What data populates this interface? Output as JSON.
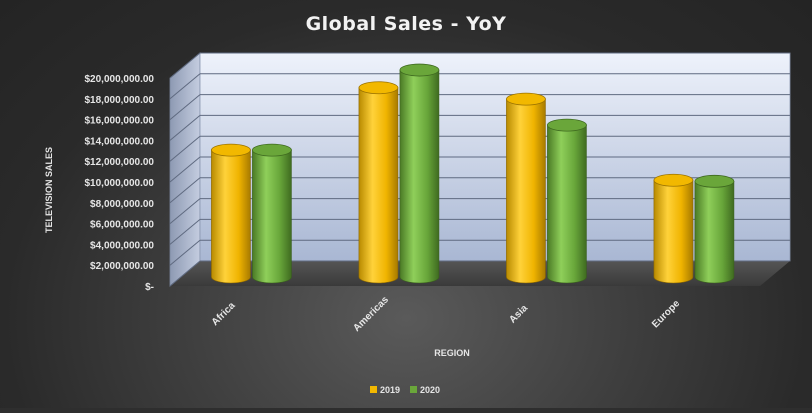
{
  "chart_data": {
    "type": "bar",
    "title": "Global Sales - YoY",
    "xlabel": "REGION",
    "ylabel": "TELEVISION SALES",
    "categories": [
      "Africa",
      "Americas",
      "Asia",
      "Europe"
    ],
    "series": [
      {
        "name": "2019",
        "color": "#f2b800",
        "values": [
          12200000,
          18200000,
          17100000,
          9300000
        ]
      },
      {
        "name": "2020",
        "color": "#6aa63a",
        "values": [
          12200000,
          19900000,
          14600000,
          9200000
        ]
      }
    ],
    "ylim": [
      0,
      20000000
    ],
    "yticks": [
      "$-",
      "$2,000,000.00",
      "$4,000,000.00",
      "$6,000,000.00",
      "$8,000,000.00",
      "$10,000,000.00",
      "$12,000,000.00",
      "$14,000,000.00",
      "$16,000,000.00",
      "$18,000,000.00",
      "$20,000,000.00"
    ],
    "grid": true,
    "legend_position": "bottom",
    "bar_shape": "3d-cylinder"
  }
}
